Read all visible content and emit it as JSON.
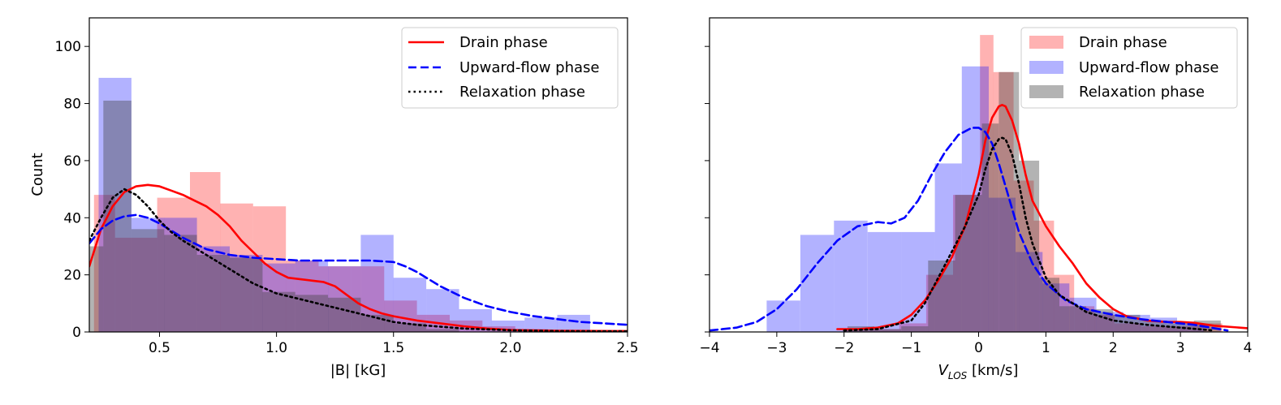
{
  "chart_data": [
    {
      "type": "histogram",
      "title": "",
      "xlabel": "|B| [kG]",
      "ylabel": "Count",
      "xlim": [
        0.2,
        2.5
      ],
      "ylim": [
        0,
        110
      ],
      "xticks": [
        0.5,
        1.0,
        1.5,
        2.0,
        2.5
      ],
      "xtick_labels": [
        "0.5",
        "1.0",
        "1.5",
        "2.0",
        "2.5"
      ],
      "yticks": [
        0,
        20,
        40,
        60,
        80,
        100
      ],
      "ytick_labels": [
        "0",
        "20",
        "40",
        "60",
        "80",
        "100"
      ],
      "legend_position": "top-right",
      "series": [
        {
          "name": "Drain phase",
          "color": "#ff0000",
          "line_style": "solid",
          "hist_color": "#ff0000",
          "bins": [
            0.22,
            0.31,
            0.49,
            0.63,
            0.76,
            0.9,
            1.04,
            1.18,
            1.32,
            1.46,
            1.6,
            1.74,
            1.88,
            2.02,
            2.16,
            2.3
          ],
          "counts": [
            48,
            33,
            47,
            56,
            45,
            44,
            25,
            23,
            23,
            11,
            6,
            4,
            2,
            1,
            0
          ],
          "kde_x": [
            0.2,
            0.25,
            0.3,
            0.35,
            0.4,
            0.45,
            0.5,
            0.55,
            0.6,
            0.65,
            0.7,
            0.75,
            0.8,
            0.85,
            0.9,
            0.95,
            1.0,
            1.05,
            1.1,
            1.15,
            1.2,
            1.25,
            1.3,
            1.35,
            1.4,
            1.45,
            1.5,
            1.6,
            1.7,
            1.8,
            1.9,
            2.0,
            2.2,
            2.5
          ],
          "kde_y": [
            23,
            36,
            44,
            49,
            51,
            51.5,
            51,
            49.5,
            48,
            46,
            44,
            41,
            37,
            32,
            28,
            24,
            21,
            19,
            18.5,
            18,
            17.5,
            16,
            13,
            10,
            8,
            6.5,
            5.5,
            4,
            3,
            2,
            1.2,
            0.7,
            0.4,
            0.3
          ]
        },
        {
          "name": "Upward-flow phase",
          "color": "#0000ff",
          "line_style": "dashed",
          "hist_color": "#0000ff",
          "bins": [
            0.24,
            0.38,
            0.52,
            0.66,
            0.8,
            0.94,
            1.08,
            1.22,
            1.36,
            1.5,
            1.64,
            1.78,
            1.92,
            2.06,
            2.2,
            2.34
          ],
          "counts": [
            89,
            40,
            40,
            30,
            27,
            24,
            25,
            23,
            34,
            19,
            15,
            8,
            4,
            5,
            6
          ],
          "kde_x": [
            0.2,
            0.25,
            0.3,
            0.35,
            0.4,
            0.45,
            0.5,
            0.6,
            0.7,
            0.8,
            0.9,
            1.0,
            1.1,
            1.2,
            1.3,
            1.4,
            1.5,
            1.55,
            1.6,
            1.7,
            1.8,
            1.9,
            2.0,
            2.1,
            2.2,
            2.3,
            2.4,
            2.5
          ],
          "kde_y": [
            31,
            36,
            39,
            40.5,
            41,
            40,
            38,
            33,
            29,
            27,
            26,
            25.5,
            25,
            25,
            25,
            25,
            24.5,
            23,
            21,
            16,
            12,
            9,
            7,
            5.5,
            4.5,
            3.5,
            3,
            2.5
          ]
        },
        {
          "name": "Relaxation phase",
          "color": "#000000",
          "line_style": "dotted",
          "hist_color": "#404040",
          "bins": [
            0.2,
            0.26,
            0.38,
            0.52,
            0.66,
            0.8,
            0.94,
            1.08,
            1.22,
            1.36,
            1.5,
            1.64,
            1.78
          ],
          "counts": [
            30,
            81,
            36,
            34,
            27,
            26,
            14,
            13,
            12,
            6,
            3,
            1
          ],
          "kde_x": [
            0.2,
            0.25,
            0.3,
            0.35,
            0.4,
            0.45,
            0.5,
            0.55,
            0.6,
            0.7,
            0.8,
            0.9,
            1.0,
            1.1,
            1.2,
            1.3,
            1.4,
            1.5,
            1.6,
            1.8,
            2.0,
            2.2,
            2.5
          ],
          "kde_y": [
            32,
            40,
            47,
            50,
            48,
            44,
            39,
            35,
            32,
            27,
            22,
            17,
            13.5,
            11.5,
            9.5,
            7.5,
            5.5,
            3.5,
            2.5,
            1.2,
            0.6,
            0.3,
            0.2
          ]
        }
      ]
    },
    {
      "type": "histogram",
      "title": "",
      "xlabel": "km/s",
      "xlabel_main": "V",
      "xlabel_sub": "LOS",
      "xlabel_unit": " [km/s]",
      "ylabel": "",
      "xlim": [
        -4,
        4
      ],
      "ylim": [
        0,
        110
      ],
      "xticks": [
        -4,
        -3,
        -2,
        -1,
        0,
        1,
        2,
        3,
        4
      ],
      "xtick_labels": [
        "−4",
        "−3",
        "−2",
        "−1",
        "0",
        "1",
        "2",
        "3",
        "4"
      ],
      "legend_position": "top-right",
      "series": [
        {
          "name": "Drain phase",
          "color": "#ff0000",
          "line_style": "solid",
          "hist_color": "#ff0000",
          "bins": [
            -1.98,
            -1.58,
            -1.18,
            -0.78,
            -0.38,
            0.02,
            0.22,
            0.52,
            0.82,
            1.12,
            1.42,
            1.72,
            2.02,
            2.42,
            2.82,
            3.22,
            3.62
          ],
          "counts": [
            1,
            1,
            3,
            20,
            48,
            104,
            91,
            53,
            39,
            20,
            9,
            6,
            3,
            2,
            2,
            3
          ],
          "kde_x": [
            -2.1,
            -1.8,
            -1.5,
            -1.2,
            -1.0,
            -0.8,
            -0.6,
            -0.4,
            -0.2,
            0.0,
            0.1,
            0.2,
            0.3,
            0.35,
            0.4,
            0.5,
            0.6,
            0.7,
            0.8,
            1.0,
            1.2,
            1.4,
            1.6,
            1.8,
            2.0,
            2.2,
            2.5,
            2.8,
            3.0,
            3.2,
            3.5,
            4.0
          ],
          "kde_y": [
            1,
            1,
            1.5,
            3,
            6,
            11,
            18,
            26,
            37,
            55,
            67,
            75,
            79,
            79.5,
            79,
            74,
            66,
            55,
            46,
            37,
            30,
            24,
            17,
            12,
            8,
            5.5,
            4,
            3.5,
            3.5,
            3.2,
            2.2,
            1.3
          ]
        },
        {
          "name": "Upward-flow phase",
          "color": "#0000ff",
          "line_style": "dashed",
          "hist_color": "#0000ff",
          "bins": [
            -3.15,
            -2.65,
            -2.15,
            -1.65,
            -1.15,
            -0.65,
            -0.25,
            0.15,
            0.55,
            0.95,
            1.35,
            1.75,
            2.15,
            2.55,
            2.95,
            3.35
          ],
          "counts": [
            11,
            34,
            39,
            35,
            35,
            59,
            93,
            47,
            28,
            17,
            12,
            7,
            6,
            5,
            3
          ],
          "kde_x": [
            -4.0,
            -3.6,
            -3.3,
            -3.0,
            -2.7,
            -2.4,
            -2.1,
            -1.8,
            -1.5,
            -1.3,
            -1.1,
            -0.9,
            -0.7,
            -0.5,
            -0.3,
            -0.1,
            0.0,
            0.1,
            0.2,
            0.3,
            0.4,
            0.5,
            0.6,
            0.8,
            1.0,
            1.3,
            1.6,
            2.0,
            2.4,
            2.8,
            3.2,
            3.7
          ],
          "kde_y": [
            0.5,
            1.5,
            3.5,
            8,
            15,
            24,
            32,
            37,
            38.5,
            38,
            40,
            46,
            55,
            63,
            69,
            71.5,
            71.5,
            70,
            66,
            59,
            51,
            43,
            35,
            24,
            17,
            11,
            8,
            6,
            4.5,
            3.5,
            2.5,
            0.5
          ]
        },
        {
          "name": "Relaxation phase",
          "color": "#000000",
          "line_style": "dotted",
          "hist_color": "#404040",
          "bins": [
            -1.95,
            -1.55,
            -1.15,
            -0.75,
            -0.35,
            0.05,
            0.3,
            0.6,
            0.9,
            1.2,
            1.6,
            2.0,
            2.4,
            2.8,
            3.2,
            3.6
          ],
          "counts": [
            2,
            1,
            2,
            25,
            48,
            73,
            91,
            60,
            19,
            9,
            8,
            6,
            4,
            3,
            4
          ],
          "kde_x": [
            -2.0,
            -1.5,
            -1.0,
            -0.8,
            -0.6,
            -0.4,
            -0.2,
            0.0,
            0.1,
            0.2,
            0.3,
            0.35,
            0.4,
            0.5,
            0.6,
            0.7,
            0.8,
            1.0,
            1.2,
            1.4,
            1.6,
            2.0,
            2.5,
            3.0,
            3.5
          ],
          "kde_y": [
            0.5,
            1,
            4,
            10,
            19,
            28,
            37,
            48,
            57,
            64,
            67.5,
            68,
            67.5,
            62,
            52,
            40,
            31,
            19,
            13,
            10,
            7,
            4,
            2.5,
            1.5,
            0.5
          ]
        }
      ]
    }
  ]
}
